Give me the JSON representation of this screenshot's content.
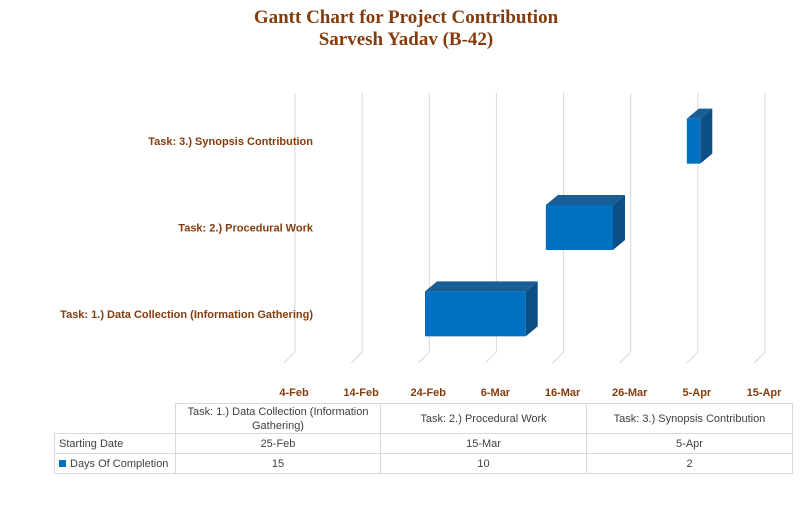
{
  "title": {
    "line1": "Gantt Chart for Project Contribution",
    "line2": "Sarvesh Yadav (B-42)"
  },
  "colors": {
    "bar_front": "#0070c0",
    "bar_top": "#1a5e96",
    "bar_side": "#0b4f86",
    "title": "#843c0c",
    "grid": "#d9d9d9"
  },
  "chart_data": {
    "type": "bar",
    "orientation": "horizontal",
    "style": "3d-gantt",
    "title": "Gantt Chart for Project Contribution",
    "subtitle": "Sarvesh Yadav (B-42)",
    "categories": [
      "Task: 1.) Data Collection (Information Gathering)",
      "Task: 2.) Procedural Work",
      "Task: 3.) Synopsis Contribution"
    ],
    "start_dates": [
      "25-Feb",
      "15-Mar",
      "5-Apr"
    ],
    "series": [
      {
        "name": "Days Of Completion",
        "values": [
          15,
          10,
          2
        ]
      }
    ],
    "x_ticks": [
      "4-Feb",
      "14-Feb",
      "24-Feb",
      "6-Mar",
      "16-Mar",
      "26-Mar",
      "5-Apr",
      "15-Apr"
    ],
    "grid": true,
    "data_table": {
      "row_labels": [
        "Starting Date",
        "Days Of Completion"
      ],
      "starting_dates": [
        "25-Feb",
        "15-Mar",
        "5-Apr"
      ],
      "days": [
        "15",
        "10",
        "2"
      ]
    }
  }
}
